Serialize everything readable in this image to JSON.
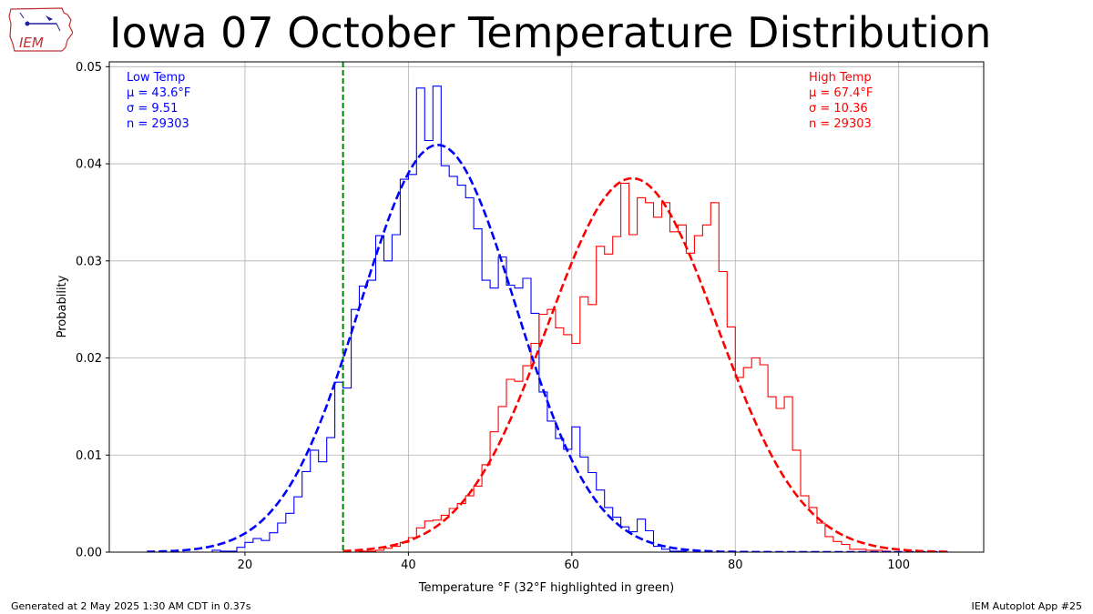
{
  "header": {
    "title": "Iowa 07 October Temperature Distribution",
    "logo_text": "IEM"
  },
  "footer": {
    "left": "Generated at 2 May 2025 1:30 AM CDT in 0.37s",
    "right": "IEM Autoplot App #25"
  },
  "colors": {
    "low": "#0000ff",
    "high": "#ff0000",
    "highlight": "#008000",
    "grid": "#b0b0b0"
  },
  "chart_data": {
    "type": "histogram",
    "xlabel": "Temperature $^\\circ$F (32$^\\circ$F highlighted in green)",
    "xlabel_display": "Temperature °F (32°F highlighted in green)",
    "ylabel": "Probability",
    "xlim": [
      3.4,
      110.4
    ],
    "ylim": [
      0,
      0.0505
    ],
    "x_ticks": [
      20,
      40,
      60,
      80,
      100
    ],
    "y_ticks": [
      0.0,
      0.01,
      0.02,
      0.03,
      0.04,
      0.05
    ],
    "y_tick_labels": [
      "0.00",
      "0.01",
      "0.02",
      "0.03",
      "0.04",
      "0.05"
    ],
    "grid": true,
    "highlight_x": 32,
    "bin_width": 1,
    "series": [
      {
        "name": "Low Temp",
        "stats": [
          "Low Temp",
          "μ = 43.6°F",
          "σ = 9.51",
          "n = 29303"
        ],
        "mu": 43.6,
        "sigma": 9.51,
        "fit_x_range": [
          8,
          106
        ],
        "hist_start": 8,
        "hist": [
          0.0,
          0.0,
          0.0,
          0.0,
          0.0,
          0.0,
          0.0,
          0.0,
          0.0002,
          0.0001,
          0.0001,
          0.0005,
          0.001,
          0.0014,
          0.0012,
          0.002,
          0.003,
          0.004,
          0.0057,
          0.0083,
          0.0105,
          0.0093,
          0.0118,
          0.0175,
          0.0169,
          0.025,
          0.0274,
          0.028,
          0.0326,
          0.03,
          0.0327,
          0.0384,
          0.0389,
          0.0478,
          0.0424,
          0.048,
          0.0398,
          0.0387,
          0.0378,
          0.0365,
          0.0333,
          0.028,
          0.0272,
          0.0304,
          0.0275,
          0.0272,
          0.0282,
          0.0246,
          0.0165,
          0.0135,
          0.0117,
          0.0106,
          0.0129,
          0.0098,
          0.0082,
          0.0064,
          0.0046,
          0.0036,
          0.0026,
          0.0021,
          0.0034,
          0.0022,
          0.0006,
          0.0003,
          0.0001,
          0.0001
        ]
      },
      {
        "name": "High Temp",
        "stats": [
          "High Temp",
          "μ = 67.4°F",
          "σ = 10.36",
          "n = 29303"
        ],
        "mu": 67.4,
        "sigma": 10.36,
        "fit_x_range": [
          32,
          106
        ],
        "hist_start": 32,
        "hist": [
          0.0,
          0.0,
          0.0001,
          0.0001,
          0.0002,
          0.0004,
          0.0006,
          0.001,
          0.0015,
          0.0025,
          0.0032,
          0.0033,
          0.0038,
          0.0045,
          0.005,
          0.0058,
          0.0068,
          0.009,
          0.0124,
          0.015,
          0.0178,
          0.0176,
          0.0192,
          0.0215,
          0.0245,
          0.025,
          0.0231,
          0.0224,
          0.0215,
          0.0263,
          0.0255,
          0.0315,
          0.0307,
          0.0325,
          0.038,
          0.0327,
          0.0365,
          0.036,
          0.0345,
          0.036,
          0.033,
          0.0337,
          0.0308,
          0.0326,
          0.0337,
          0.036,
          0.0289,
          0.0232,
          0.018,
          0.019,
          0.02,
          0.0193,
          0.016,
          0.0148,
          0.016,
          0.0105,
          0.0058,
          0.0046,
          0.003,
          0.0016,
          0.0011,
          0.0008,
          0.0003,
          0.0003,
          0.0002,
          0.0002,
          0.0001
        ]
      }
    ]
  }
}
